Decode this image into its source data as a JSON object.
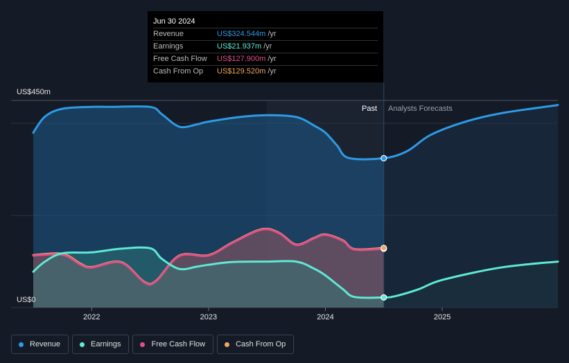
{
  "chart_data": {
    "type": "area",
    "y_axis": {
      "max_label": "US$450m",
      "min_label": "US$0",
      "ylim": [
        0,
        450
      ]
    },
    "x_ticks": [
      "2022",
      "2023",
      "2024",
      "2025"
    ],
    "x_range": [
      2021.5,
      2025.99
    ],
    "past_forecast_divider": 2024.5,
    "past_label": "Past",
    "forecast_label": "Analysts Forecasts",
    "tooltip": {
      "date": "Jun 30 2024",
      "rows": [
        {
          "label": "Revenue",
          "value": "US$324.544m",
          "unit": "/yr",
          "color": "#2d9be6"
        },
        {
          "label": "Earnings",
          "value": "US$21.937m",
          "unit": "/yr",
          "color": "#5eead4"
        },
        {
          "label": "Free Cash Flow",
          "value": "US$127.900m",
          "unit": "/yr",
          "color": "#e0508a"
        },
        {
          "label": "Cash From Op",
          "value": "US$129.520m",
          "unit": "/yr",
          "color": "#f0a860"
        }
      ]
    },
    "series": [
      {
        "name": "Revenue",
        "color": "#2d9be6",
        "points": [
          [
            2021.5,
            380
          ],
          [
            2021.6,
            415
          ],
          [
            2021.75,
            432
          ],
          [
            2022.0,
            436
          ],
          [
            2022.15,
            436
          ],
          [
            2022.5,
            436
          ],
          [
            2022.6,
            420
          ],
          [
            2022.75,
            393
          ],
          [
            2022.9,
            398
          ],
          [
            2023.0,
            404
          ],
          [
            2023.3,
            415
          ],
          [
            2023.5,
            418
          ],
          [
            2023.7,
            416
          ],
          [
            2023.8,
            410
          ],
          [
            2023.9,
            396
          ],
          [
            2024.0,
            380
          ],
          [
            2024.1,
            352
          ],
          [
            2024.2,
            325
          ],
          [
            2024.5,
            324.5
          ],
          [
            2024.7,
            340
          ],
          [
            2024.9,
            375
          ],
          [
            2025.2,
            404
          ],
          [
            2025.5,
            422
          ],
          [
            2025.99,
            440
          ]
        ]
      },
      {
        "name": "Earnings",
        "color": "#5eead4",
        "points": [
          [
            2021.5,
            78
          ],
          [
            2021.6,
            100
          ],
          [
            2021.75,
            118
          ],
          [
            2022.0,
            120
          ],
          [
            2022.25,
            128
          ],
          [
            2022.5,
            129
          ],
          [
            2022.6,
            106
          ],
          [
            2022.75,
            84
          ],
          [
            2022.9,
            89
          ],
          [
            2023.0,
            93
          ],
          [
            2023.2,
            99
          ],
          [
            2023.5,
            100
          ],
          [
            2023.75,
            100
          ],
          [
            2023.9,
            85
          ],
          [
            2024.0,
            70
          ],
          [
            2024.15,
            40
          ],
          [
            2024.25,
            23
          ],
          [
            2024.5,
            22
          ],
          [
            2024.6,
            25
          ],
          [
            2024.8,
            40
          ],
          [
            2025.0,
            60
          ],
          [
            2025.5,
            87
          ],
          [
            2025.99,
            100
          ]
        ]
      },
      {
        "name": "Free Cash Flow",
        "color": "#e0508a",
        "points": [
          [
            2021.5,
            113
          ],
          [
            2021.75,
            115
          ],
          [
            2021.9,
            94
          ],
          [
            2022.0,
            87
          ],
          [
            2022.25,
            98
          ],
          [
            2022.45,
            55
          ],
          [
            2022.55,
            57
          ],
          [
            2022.75,
            112
          ],
          [
            2023.0,
            113
          ],
          [
            2023.2,
            140
          ],
          [
            2023.45,
            169
          ],
          [
            2023.6,
            162
          ],
          [
            2023.75,
            136
          ],
          [
            2023.9,
            150
          ],
          [
            2024.0,
            158
          ],
          [
            2024.15,
            145
          ],
          [
            2024.25,
            126
          ],
          [
            2024.5,
            128
          ]
        ]
      },
      {
        "name": "Cash From Op",
        "color": "#f0a860",
        "points": [
          [
            2021.5,
            114
          ],
          [
            2021.75,
            117
          ],
          [
            2021.9,
            96
          ],
          [
            2022.0,
            88
          ],
          [
            2022.25,
            99
          ],
          [
            2022.45,
            56
          ],
          [
            2022.55,
            58
          ],
          [
            2022.75,
            113
          ],
          [
            2023.0,
            114
          ],
          [
            2023.2,
            141
          ],
          [
            2023.45,
            170
          ],
          [
            2023.6,
            163
          ],
          [
            2023.75,
            137
          ],
          [
            2023.9,
            151
          ],
          [
            2024.0,
            159
          ],
          [
            2024.15,
            146
          ],
          [
            2024.25,
            127
          ],
          [
            2024.5,
            129.52
          ]
        ]
      }
    ],
    "legend": [
      {
        "label": "Revenue",
        "color": "#2d9be6"
      },
      {
        "label": "Earnings",
        "color": "#5eead4"
      },
      {
        "label": "Free Cash Flow",
        "color": "#e0508a"
      },
      {
        "label": "Cash From Op",
        "color": "#f0a860"
      }
    ]
  }
}
